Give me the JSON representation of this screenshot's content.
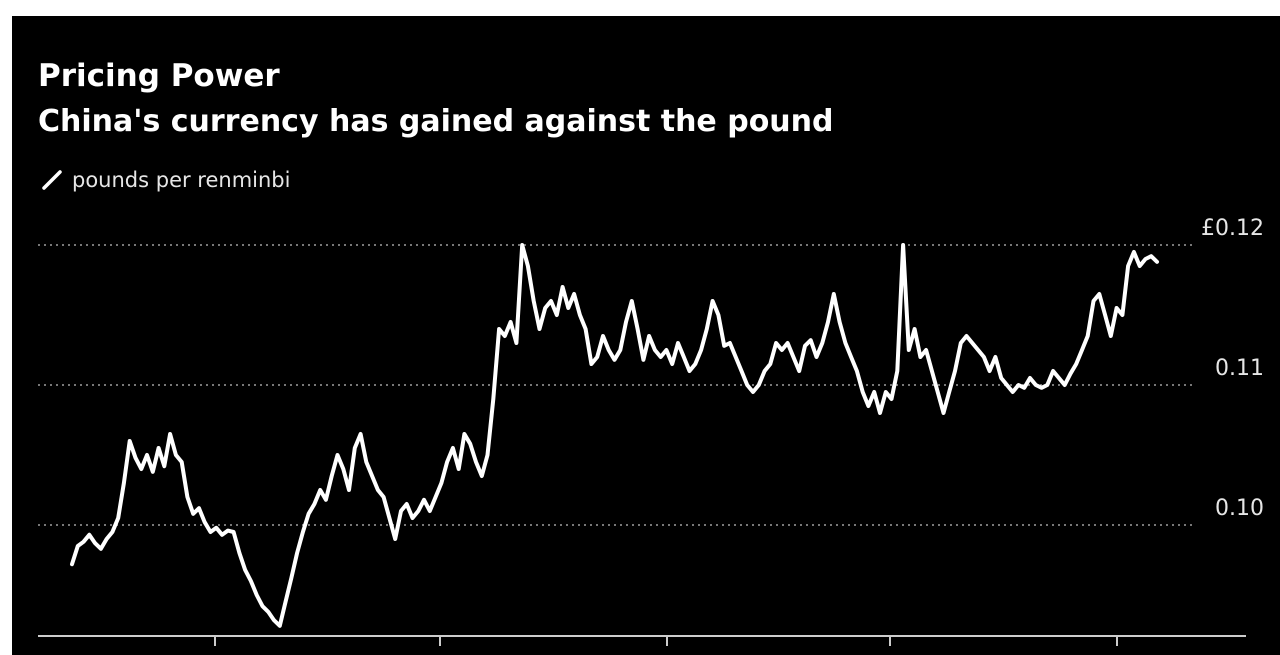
{
  "chart_data": {
    "type": "line",
    "title": "Pricing Power",
    "subtitle": "China's currency has gained against the pound",
    "legend": [
      "pounds per renminbi"
    ],
    "legend_placement": "top-left",
    "ylim": [
      0.092,
      0.122
    ],
    "yticks": [
      0.1,
      0.11,
      0.12
    ],
    "ytick_labels": [
      "0.10",
      "0.11",
      "£0.12"
    ],
    "grid": "horizontal dotted",
    "series": [
      {
        "name": "pounds per renminbi",
        "color": "#ffffff",
        "values": [
          0.0972,
          0.0985,
          0.0988,
          0.0993,
          0.0987,
          0.0983,
          0.099,
          0.0995,
          0.1005,
          0.103,
          0.106,
          0.1048,
          0.104,
          0.105,
          0.1038,
          0.1055,
          0.1042,
          0.1065,
          0.105,
          0.1045,
          0.102,
          0.1008,
          0.1012,
          0.1002,
          0.0995,
          0.0998,
          0.0993,
          0.0996,
          0.0995,
          0.098,
          0.0968,
          0.096,
          0.095,
          0.0942,
          0.0938,
          0.0932,
          0.0928,
          0.0945,
          0.0962,
          0.098,
          0.0995,
          0.1008,
          0.1015,
          0.1025,
          0.1018,
          0.1035,
          0.105,
          0.104,
          0.1025,
          0.1055,
          0.1065,
          0.1045,
          0.1035,
          0.1025,
          0.102,
          0.1005,
          0.099,
          0.101,
          0.1015,
          0.1005,
          0.101,
          0.1018,
          0.101,
          0.102,
          0.103,
          0.1045,
          0.1055,
          0.104,
          0.1065,
          0.1058,
          0.1045,
          0.1035,
          0.105,
          0.109,
          0.114,
          0.1135,
          0.1145,
          0.113,
          0.12,
          0.1185,
          0.116,
          0.114,
          0.1155,
          0.116,
          0.115,
          0.117,
          0.1155,
          0.1165,
          0.115,
          0.114,
          0.1115,
          0.112,
          0.1135,
          0.1125,
          0.1118,
          0.1125,
          0.1145,
          0.116,
          0.114,
          0.1118,
          0.1135,
          0.1125,
          0.112,
          0.1125,
          0.1115,
          0.113,
          0.112,
          0.111,
          0.1115,
          0.1125,
          0.114,
          0.116,
          0.115,
          0.1128,
          0.113,
          0.112,
          0.111,
          0.11,
          0.1095,
          0.11,
          0.111,
          0.1115,
          0.113,
          0.1125,
          0.113,
          0.112,
          0.111,
          0.1128,
          0.1132,
          0.112,
          0.113,
          0.1145,
          0.1165,
          0.1145,
          0.113,
          0.112,
          0.111,
          0.1095,
          0.1085,
          0.1095,
          0.108,
          0.1095,
          0.109,
          0.111,
          0.12,
          0.1125,
          0.114,
          0.112,
          0.1125,
          0.111,
          0.1095,
          0.108,
          0.1095,
          0.111,
          0.113,
          0.1135,
          0.113,
          0.1125,
          0.112,
          0.111,
          0.112,
          0.1105,
          0.11,
          0.1095,
          0.11,
          0.1098,
          0.1105,
          0.11,
          0.1098,
          0.11,
          0.111,
          0.1105,
          0.11,
          0.1108,
          0.1115,
          0.1125,
          0.1135,
          0.116,
          0.1165,
          0.115,
          0.1135,
          0.1155,
          0.115,
          0.1185,
          0.1195,
          0.1185,
          0.119,
          0.1192,
          0.1188
        ]
      }
    ]
  },
  "colors": {
    "background": "#000000",
    "line": "#ffffff",
    "grid": "#777777",
    "text": "#ffffff"
  }
}
